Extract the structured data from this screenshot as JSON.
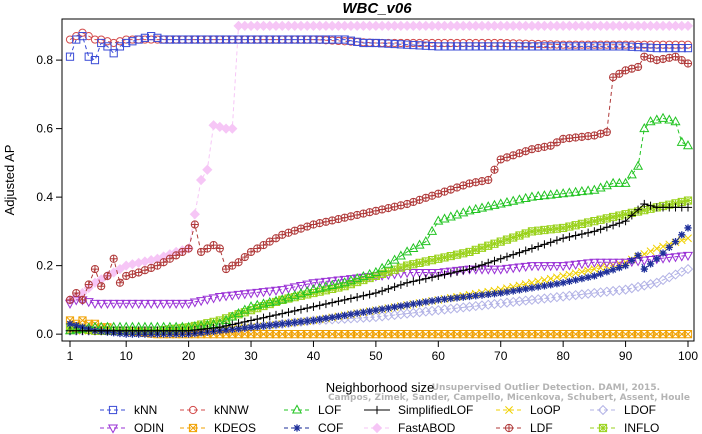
{
  "chart_data": {
    "type": "line",
    "title": "WBC_v06",
    "xlabel": "Neighborhood size",
    "ylabel": "Adjusted AP",
    "xlim": [
      1,
      100
    ],
    "ylim": [
      -0.02,
      0.92
    ],
    "x_ticks": [
      1,
      10,
      20,
      30,
      40,
      50,
      60,
      70,
      80,
      90,
      100
    ],
    "y_ticks": [
      0.0,
      0.2,
      0.4,
      0.6,
      0.8
    ],
    "y_tick_labels": [
      "0.0",
      "0.2",
      "0.4",
      "0.6",
      "0.8"
    ],
    "grid": false,
    "legend_position": "bottom",
    "watermark_lines": [
      "Campos, Zimek, Sander, Campello, Micenkova, Schubert, Assent, Houle",
      "Unsupervised Outlier Detection. DAMI, 2015."
    ],
    "series": [
      {
        "name": "kNN",
        "color": "#3a4bd6",
        "marker": "square",
        "line": "dashed",
        "points": [
          [
            1,
            0.81
          ],
          [
            2,
            0.86
          ],
          [
            3,
            0.87
          ],
          [
            4,
            0.81
          ],
          [
            5,
            0.8
          ],
          [
            6,
            0.85
          ],
          [
            7,
            0.84
          ],
          [
            8,
            0.82
          ],
          [
            9,
            0.84
          ],
          [
            10,
            0.85
          ],
          [
            12,
            0.86
          ],
          [
            14,
            0.87
          ],
          [
            16,
            0.86
          ],
          [
            18,
            0.86
          ],
          [
            20,
            0.86
          ],
          [
            22,
            0.86
          ],
          [
            25,
            0.86
          ],
          [
            30,
            0.86
          ],
          [
            35,
            0.86
          ],
          [
            40,
            0.86
          ],
          [
            45,
            0.86
          ],
          [
            48,
            0.85
          ],
          [
            50,
            0.85
          ],
          [
            55,
            0.845
          ],
          [
            60,
            0.84
          ],
          [
            70,
            0.84
          ],
          [
            80,
            0.84
          ],
          [
            90,
            0.84
          ],
          [
            95,
            0.835
          ],
          [
            100,
            0.835
          ]
        ]
      },
      {
        "name": "kNNW",
        "color": "#d34b4b",
        "marker": "circle",
        "line": "dashed",
        "points": [
          [
            1,
            0.86
          ],
          [
            2,
            0.87
          ],
          [
            3,
            0.88
          ],
          [
            4,
            0.87
          ],
          [
            5,
            0.86
          ],
          [
            6,
            0.86
          ],
          [
            8,
            0.85
          ],
          [
            10,
            0.86
          ],
          [
            15,
            0.86
          ],
          [
            20,
            0.86
          ],
          [
            25,
            0.86
          ],
          [
            30,
            0.86
          ],
          [
            40,
            0.86
          ],
          [
            50,
            0.85
          ],
          [
            60,
            0.85
          ],
          [
            70,
            0.85
          ],
          [
            80,
            0.845
          ],
          [
            90,
            0.845
          ],
          [
            100,
            0.845
          ]
        ]
      },
      {
        "name": "LOF",
        "color": "#22c422",
        "marker": "triangle-up",
        "line": "dashed",
        "points": [
          [
            1,
            0.01
          ],
          [
            5,
            0.02
          ],
          [
            10,
            0.02
          ],
          [
            15,
            0.02
          ],
          [
            20,
            0.02
          ],
          [
            25,
            0.03
          ],
          [
            28,
            0.06
          ],
          [
            30,
            0.08
          ],
          [
            35,
            0.1
          ],
          [
            40,
            0.13
          ],
          [
            45,
            0.15
          ],
          [
            50,
            0.18
          ],
          [
            55,
            0.24
          ],
          [
            58,
            0.27
          ],
          [
            60,
            0.33
          ],
          [
            65,
            0.36
          ],
          [
            70,
            0.38
          ],
          [
            75,
            0.4
          ],
          [
            80,
            0.41
          ],
          [
            85,
            0.42
          ],
          [
            88,
            0.44
          ],
          [
            90,
            0.44
          ],
          [
            92,
            0.49
          ],
          [
            93,
            0.6
          ],
          [
            94,
            0.62
          ],
          [
            96,
            0.63
          ],
          [
            98,
            0.62
          ],
          [
            99,
            0.56
          ],
          [
            100,
            0.55
          ]
        ]
      },
      {
        "name": "SimplifiedLOF",
        "color": "#000000",
        "marker": "plus",
        "line": "solid",
        "points": [
          [
            1,
            0.01
          ],
          [
            5,
            0.01
          ],
          [
            10,
            0.01
          ],
          [
            15,
            0.01
          ],
          [
            20,
            0.01
          ],
          [
            25,
            0.02
          ],
          [
            30,
            0.04
          ],
          [
            35,
            0.06
          ],
          [
            40,
            0.08
          ],
          [
            45,
            0.1
          ],
          [
            50,
            0.12
          ],
          [
            55,
            0.15
          ],
          [
            60,
            0.17
          ],
          [
            65,
            0.19
          ],
          [
            70,
            0.22
          ],
          [
            75,
            0.25
          ],
          [
            80,
            0.28
          ],
          [
            85,
            0.3
          ],
          [
            90,
            0.33
          ],
          [
            93,
            0.38
          ],
          [
            95,
            0.37
          ],
          [
            97,
            0.37
          ],
          [
            100,
            0.37
          ]
        ]
      },
      {
        "name": "LoOP",
        "color": "#f0d000",
        "marker": "x",
        "line": "dashed",
        "points": [
          [
            1,
            0.01
          ],
          [
            5,
            0.01
          ],
          [
            10,
            0.01
          ],
          [
            20,
            0.01
          ],
          [
            30,
            0.02
          ],
          [
            40,
            0.04
          ],
          [
            50,
            0.07
          ],
          [
            60,
            0.1
          ],
          [
            70,
            0.13
          ],
          [
            80,
            0.17
          ],
          [
            85,
            0.19
          ],
          [
            90,
            0.21
          ],
          [
            95,
            0.25
          ],
          [
            100,
            0.28
          ]
        ]
      },
      {
        "name": "LDOF",
        "color": "#b3b3e6",
        "marker": "diamond",
        "line": "dashed",
        "points": [
          [
            1,
            0.01
          ],
          [
            10,
            0.01
          ],
          [
            20,
            0.01
          ],
          [
            30,
            0.02
          ],
          [
            40,
            0.04
          ],
          [
            50,
            0.05
          ],
          [
            60,
            0.07
          ],
          [
            70,
            0.09
          ],
          [
            80,
            0.11
          ],
          [
            90,
            0.13
          ],
          [
            95,
            0.15
          ],
          [
            100,
            0.19
          ]
        ]
      },
      {
        "name": "ODIN",
        "color": "#9a32d6",
        "marker": "triangle-down",
        "line": "dashed",
        "points": [
          [
            1,
            0.09
          ],
          [
            2,
            0.1
          ],
          [
            3,
            0.1
          ],
          [
            5,
            0.09
          ],
          [
            10,
            0.09
          ],
          [
            15,
            0.09
          ],
          [
            20,
            0.09
          ],
          [
            25,
            0.11
          ],
          [
            30,
            0.12
          ],
          [
            35,
            0.13
          ],
          [
            40,
            0.15
          ],
          [
            45,
            0.16
          ],
          [
            50,
            0.17
          ],
          [
            55,
            0.18
          ],
          [
            60,
            0.18
          ],
          [
            65,
            0.19
          ],
          [
            70,
            0.19
          ],
          [
            75,
            0.2
          ],
          [
            80,
            0.2
          ],
          [
            85,
            0.21
          ],
          [
            90,
            0.21
          ],
          [
            95,
            0.22
          ],
          [
            100,
            0.23
          ]
        ]
      },
      {
        "name": "KDEOS",
        "color": "#f0a000",
        "marker": "box-x",
        "line": "dashed",
        "points": [
          [
            1,
            0.04
          ],
          [
            2,
            0.03
          ],
          [
            3,
            0.04
          ],
          [
            4,
            0.03
          ],
          [
            5,
            0.03
          ],
          [
            6,
            0.02
          ],
          [
            7,
            0.02
          ],
          [
            8,
            0.01
          ],
          [
            10,
            0.01
          ],
          [
            15,
            0.0
          ],
          [
            20,
            0.0
          ],
          [
            30,
            0.0
          ],
          [
            40,
            0.0
          ],
          [
            50,
            0.0
          ],
          [
            60,
            0.0
          ],
          [
            70,
            0.0
          ],
          [
            80,
            0.0
          ],
          [
            90,
            0.0
          ],
          [
            100,
            0.0
          ]
        ]
      },
      {
        "name": "COF",
        "color": "#1e2f9a",
        "marker": "asterisk",
        "line": "dashed",
        "points": [
          [
            1,
            0.03
          ],
          [
            5,
            0.01
          ],
          [
            10,
            0.0
          ],
          [
            20,
            0.0
          ],
          [
            30,
            0.02
          ],
          [
            40,
            0.04
          ],
          [
            50,
            0.07
          ],
          [
            60,
            0.1
          ],
          [
            70,
            0.12
          ],
          [
            80,
            0.15
          ],
          [
            85,
            0.17
          ],
          [
            90,
            0.2
          ],
          [
            92,
            0.23
          ],
          [
            93,
            0.19
          ],
          [
            95,
            0.22
          ],
          [
            98,
            0.27
          ],
          [
            100,
            0.31
          ]
        ]
      },
      {
        "name": "FastABOD",
        "color": "#f6c6f6",
        "marker": "diamond-filled",
        "line": "dashed",
        "points": [
          [
            1,
            0.1
          ],
          [
            3,
            0.12
          ],
          [
            5,
            0.15
          ],
          [
            8,
            0.18
          ],
          [
            10,
            0.2
          ],
          [
            15,
            0.22
          ],
          [
            18,
            0.24
          ],
          [
            20,
            0.25
          ],
          [
            22,
            0.45
          ],
          [
            23,
            0.48
          ],
          [
            24,
            0.61
          ],
          [
            26,
            0.6
          ],
          [
            27,
            0.6
          ],
          [
            28,
            0.9
          ],
          [
            30,
            0.9
          ],
          [
            40,
            0.9
          ],
          [
            50,
            0.9
          ],
          [
            60,
            0.9
          ],
          [
            70,
            0.9
          ],
          [
            80,
            0.9
          ],
          [
            90,
            0.9
          ],
          [
            100,
            0.9
          ]
        ]
      },
      {
        "name": "LDF",
        "color": "#b03a3a",
        "marker": "circle-plus",
        "line": "dashed",
        "points": [
          [
            1,
            0.1
          ],
          [
            2,
            0.12
          ],
          [
            3,
            0.1
          ],
          [
            5,
            0.19
          ],
          [
            6,
            0.14
          ],
          [
            7,
            0.17
          ],
          [
            8,
            0.22
          ],
          [
            9,
            0.15
          ],
          [
            10,
            0.17
          ],
          [
            12,
            0.18
          ],
          [
            15,
            0.2
          ],
          [
            18,
            0.23
          ],
          [
            20,
            0.25
          ],
          [
            21,
            0.32
          ],
          [
            22,
            0.24
          ],
          [
            24,
            0.26
          ],
          [
            25,
            0.25
          ],
          [
            26,
            0.19
          ],
          [
            28,
            0.21
          ],
          [
            30,
            0.24
          ],
          [
            35,
            0.29
          ],
          [
            40,
            0.32
          ],
          [
            45,
            0.34
          ],
          [
            50,
            0.36
          ],
          [
            55,
            0.38
          ],
          [
            60,
            0.41
          ],
          [
            65,
            0.44
          ],
          [
            68,
            0.45
          ],
          [
            70,
            0.51
          ],
          [
            75,
            0.54
          ],
          [
            78,
            0.55
          ],
          [
            80,
            0.57
          ],
          [
            85,
            0.58
          ],
          [
            87,
            0.59
          ],
          [
            88,
            0.75
          ],
          [
            90,
            0.77
          ],
          [
            92,
            0.78
          ],
          [
            93,
            0.81
          ],
          [
            95,
            0.8
          ],
          [
            98,
            0.81
          ],
          [
            100,
            0.79
          ]
        ]
      },
      {
        "name": "INFLO",
        "color": "#9ad21c",
        "marker": "star-box",
        "line": "dashed",
        "points": [
          [
            1,
            0.02
          ],
          [
            5,
            0.01
          ],
          [
            10,
            0.01
          ],
          [
            15,
            0.01
          ],
          [
            20,
            0.02
          ],
          [
            25,
            0.04
          ],
          [
            30,
            0.07
          ],
          [
            35,
            0.1
          ],
          [
            40,
            0.12
          ],
          [
            45,
            0.14
          ],
          [
            50,
            0.17
          ],
          [
            55,
            0.2
          ],
          [
            60,
            0.22
          ],
          [
            65,
            0.24
          ],
          [
            70,
            0.27
          ],
          [
            75,
            0.3
          ],
          [
            80,
            0.31
          ],
          [
            85,
            0.33
          ],
          [
            90,
            0.35
          ],
          [
            95,
            0.37
          ],
          [
            100,
            0.39
          ]
        ]
      }
    ],
    "legend_order": [
      "kNN",
      "kNNW",
      "LOF",
      "SimplifiedLOF",
      "LoOP",
      "LDOF",
      "ODIN",
      "KDEOS",
      "COF",
      "FastABOD",
      "LDF",
      "INFLO"
    ]
  }
}
